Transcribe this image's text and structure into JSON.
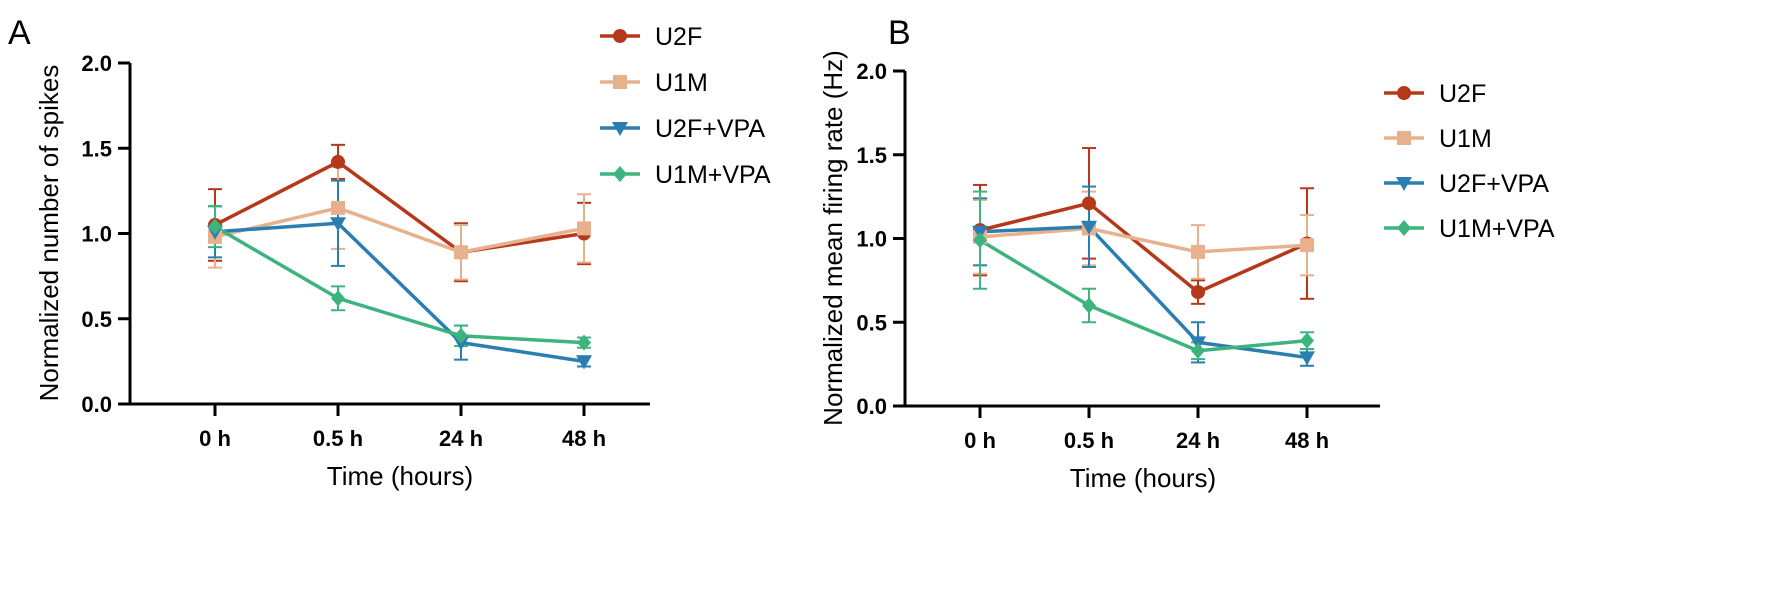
{
  "colors": {
    "U2F": "#B5381A",
    "U1M": "#E8B18E",
    "U2F+VPA": "#2B7FB0",
    "U1M+VPA": "#3DB47E",
    "axis": "#000000"
  },
  "chart_data": [
    {
      "panel": "A",
      "type": "line",
      "categories": [
        "0 h",
        "0.5 h",
        "24 h",
        "48 h"
      ],
      "xlabel": "Time (hours)",
      "ylabel": "Normalized number of spikes",
      "ylim": [
        0,
        2.0
      ],
      "yticks": [
        "0.0",
        "0.5",
        "1.0",
        "1.5",
        "2.0"
      ],
      "legend_position": "top-right",
      "series": [
        {
          "name": "U2F",
          "marker": "circle",
          "color": "#B5381A",
          "values": [
            1.05,
            1.42,
            0.89,
            1.0
          ],
          "err": [
            0.21,
            0.1,
            0.17,
            0.18
          ]
        },
        {
          "name": "U1M",
          "marker": "square",
          "color": "#E8B18E",
          "values": [
            0.98,
            1.15,
            0.89,
            1.03
          ],
          "err": [
            0.18,
            0.24,
            0.16,
            0.2
          ]
        },
        {
          "name": "U2F+VPA",
          "marker": "triangle-down",
          "color": "#2B7FB0",
          "values": [
            1.01,
            1.06,
            0.36,
            0.25
          ],
          "err": [
            0.15,
            0.25,
            0.1,
            0.03
          ]
        },
        {
          "name": "U1M+VPA",
          "marker": "diamond",
          "color": "#3DB47E",
          "values": [
            1.04,
            0.62,
            0.4,
            0.36
          ],
          "err": [
            0.12,
            0.07,
            0.06,
            0.03
          ]
        }
      ]
    },
    {
      "panel": "B",
      "type": "line",
      "categories": [
        "0 h",
        "0.5 h",
        "24 h",
        "48 h"
      ],
      "xlabel": "Time (hours)",
      "ylabel": "Normalized mean firing rate (Hz)",
      "ylim": [
        0,
        2.0
      ],
      "yticks": [
        "0.0",
        "0.5",
        "1.0",
        "1.5",
        "2.0"
      ],
      "legend_position": "right",
      "series": [
        {
          "name": "U2F",
          "marker": "circle",
          "color": "#B5381A",
          "values": [
            1.05,
            1.21,
            0.68,
            0.97
          ],
          "err": [
            0.27,
            0.33,
            0.07,
            0.33
          ]
        },
        {
          "name": "U1M",
          "marker": "square",
          "color": "#E8B18E",
          "values": [
            1.01,
            1.06,
            0.92,
            0.96
          ],
          "err": [
            0.22,
            0.22,
            0.16,
            0.18
          ]
        },
        {
          "name": "U2F+VPA",
          "marker": "triangle-down",
          "color": "#2B7FB0",
          "values": [
            1.04,
            1.07,
            0.38,
            0.29
          ],
          "err": [
            0.2,
            0.24,
            0.12,
            0.05
          ]
        },
        {
          "name": "U1M+VPA",
          "marker": "diamond",
          "color": "#3DB47E",
          "values": [
            0.99,
            0.6,
            0.33,
            0.39
          ],
          "err": [
            0.29,
            0.1,
            0.05,
            0.05
          ]
        }
      ]
    }
  ]
}
